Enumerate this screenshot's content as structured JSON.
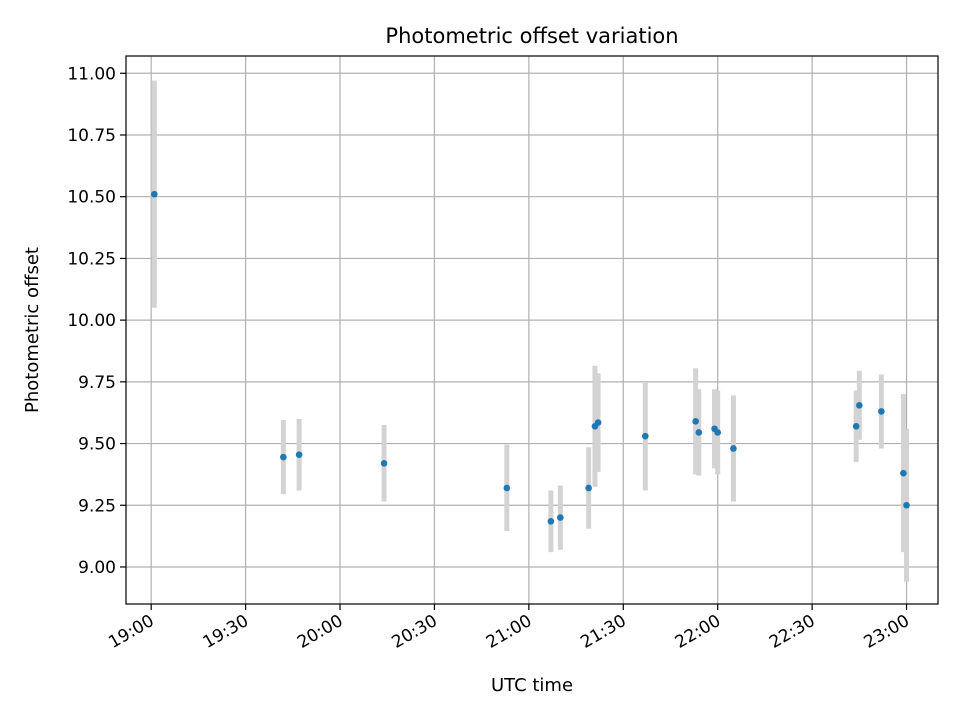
{
  "chart_data": {
    "type": "scatter",
    "title": "Photometric offset variation",
    "xlabel": "UTC time",
    "ylabel": "Photometric offset",
    "x_unit": "time",
    "xlim": [
      "18:52",
      "23:10"
    ],
    "ylim": [
      8.85,
      11.07
    ],
    "x_ticks": [
      "19:00",
      "19:30",
      "20:00",
      "20:30",
      "21:00",
      "21:30",
      "22:00",
      "22:30",
      "23:00"
    ],
    "y_ticks": [
      "9.00",
      "9.25",
      "9.50",
      "9.75",
      "10.00",
      "10.25",
      "10.50",
      "10.75",
      "11.00"
    ],
    "grid": true,
    "colors": {
      "marker": "#1f77b4",
      "errorbar": "#d3d3d3",
      "grid": "#b0b0b0"
    },
    "series": [
      {
        "points": [
          {
            "x": "19:01",
            "y": 10.51,
            "err": 0.46
          },
          {
            "x": "19:42",
            "y": 9.445,
            "err": 0.15
          },
          {
            "x": "19:47",
            "y": 9.455,
            "err": 0.145
          },
          {
            "x": "20:14",
            "y": 9.42,
            "err": 0.155
          },
          {
            "x": "20:53",
            "y": 9.32,
            "err": 0.175
          },
          {
            "x": "21:07",
            "y": 9.185,
            "err": 0.125
          },
          {
            "x": "21:10",
            "y": 9.2,
            "err": 0.13
          },
          {
            "x": "21:19",
            "y": 9.32,
            "err": 0.165
          },
          {
            "x": "21:21",
            "y": 9.57,
            "err": 0.245
          },
          {
            "x": "21:22",
            "y": 9.585,
            "err": 0.2
          },
          {
            "x": "21:37",
            "y": 9.53,
            "err": 0.22
          },
          {
            "x": "21:53",
            "y": 9.59,
            "err": 0.215
          },
          {
            "x": "21:54",
            "y": 9.545,
            "err": 0.175
          },
          {
            "x": "21:59",
            "y": 9.56,
            "err": 0.16
          },
          {
            "x": "22:00",
            "y": 9.545,
            "err": 0.17
          },
          {
            "x": "22:05",
            "y": 9.48,
            "err": 0.215
          },
          {
            "x": "22:44",
            "y": 9.57,
            "err": 0.145
          },
          {
            "x": "22:45",
            "y": 9.655,
            "err": 0.14
          },
          {
            "x": "22:52",
            "y": 9.63,
            "err": 0.15
          },
          {
            "x": "22:59",
            "y": 9.38,
            "err": 0.32
          },
          {
            "x": "23:00",
            "y": 9.25,
            "err": 0.31
          }
        ]
      }
    ]
  }
}
